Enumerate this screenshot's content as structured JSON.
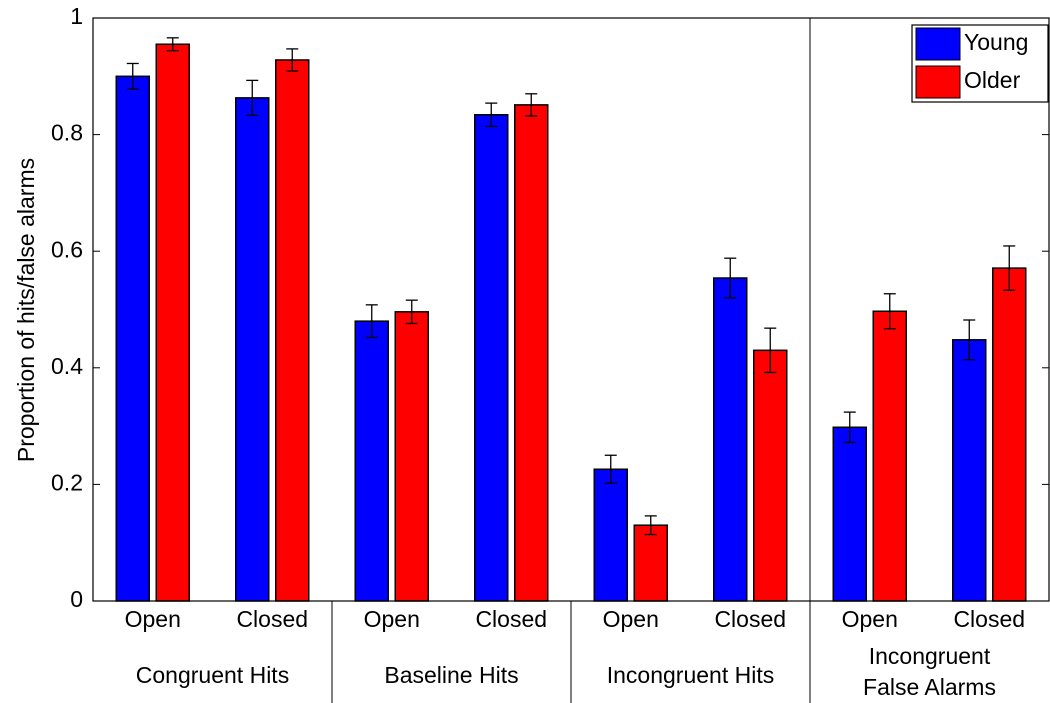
{
  "chart_data": {
    "type": "bar",
    "y_label": "Proportion of hits/false alarms",
    "categories": [
      "Open",
      "Closed",
      "Open",
      "Closed",
      "Open",
      "Closed",
      "Open",
      "Closed"
    ],
    "group_labels": [
      [
        "Congruent Hits"
      ],
      [
        "Baseline Hits"
      ],
      [
        "Incongruent Hits"
      ],
      [
        "Incongruent",
        "False Alarms"
      ]
    ],
    "series": [
      {
        "name": "Young",
        "color": "#0000ff",
        "values": [
          0.9,
          0.863,
          0.48,
          0.834,
          0.226,
          0.554,
          0.298,
          0.448
        ],
        "errors": [
          0.022,
          0.03,
          0.028,
          0.02,
          0.024,
          0.034,
          0.026,
          0.034
        ]
      },
      {
        "name": "Older",
        "color": "#ff0000",
        "values": [
          0.955,
          0.928,
          0.496,
          0.851,
          0.13,
          0.43,
          0.497,
          0.571
        ],
        "errors": [
          0.011,
          0.019,
          0.02,
          0.019,
          0.016,
          0.038,
          0.03,
          0.038
        ]
      }
    ],
    "ylim": [
      0,
      1
    ],
    "yticks": [
      0,
      0.2,
      0.4,
      0.6,
      0.8,
      1
    ],
    "legend": "top-right"
  }
}
